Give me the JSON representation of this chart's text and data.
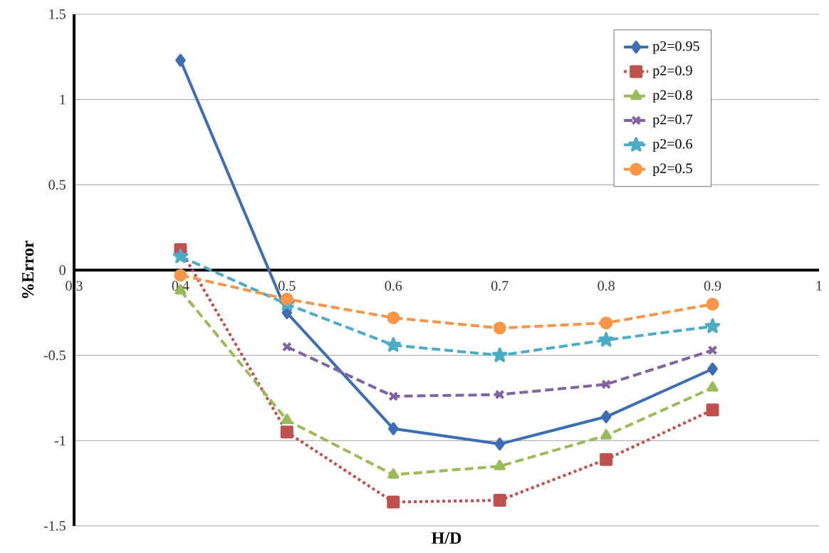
{
  "chart_data": {
    "type": "line",
    "xlabel": "H/D",
    "ylabel": "%Error",
    "x": [
      0.4,
      0.5,
      0.6,
      0.7,
      0.8,
      0.9
    ],
    "xlim": [
      0.3,
      1
    ],
    "xticks": [
      0.3,
      0.4,
      0.5,
      0.6,
      0.7,
      0.8,
      0.9,
      1
    ],
    "ylim": [
      -1.5,
      1.5
    ],
    "yticks": [
      -1.5,
      -1,
      -0.5,
      0,
      0.5,
      1,
      1.5
    ],
    "grid": "y",
    "legend": "top right",
    "series": [
      {
        "name": "p2=0.95",
        "color": "#3d6eb4",
        "marker": "diamond",
        "line_style": "solid",
        "values": [
          1.23,
          -0.25,
          -0.93,
          -1.02,
          -0.86,
          -0.58
        ]
      },
      {
        "name": "p2=0.9",
        "color": "#c0504d",
        "marker": "square",
        "line_style": "dotted",
        "values": [
          0.12,
          -0.95,
          -1.36,
          -1.35,
          -1.11,
          -0.82
        ]
      },
      {
        "name": "p2=0.8",
        "color": "#9bbb59",
        "marker": "triangle",
        "line_style": "dashed",
        "values": [
          -0.12,
          -0.88,
          -1.2,
          -1.15,
          -0.97,
          -0.69
        ]
      },
      {
        "name": "p2=0.7",
        "color": "#7f64a2",
        "marker": "cross",
        "line_style": "dashed",
        "values": [
          null,
          -0.45,
          -0.74,
          -0.73,
          -0.67,
          -0.47
        ]
      },
      {
        "name": "p2=0.6",
        "color": "#4bacc6",
        "marker": "star",
        "line_style": "dashed",
        "values": [
          0.08,
          -0.2,
          -0.44,
          -0.5,
          -0.41,
          -0.33
        ]
      },
      {
        "name": "p2=0.5",
        "color": "#f79646",
        "marker": "circle",
        "line_style": "dashed",
        "values": [
          -0.03,
          -0.17,
          -0.28,
          -0.34,
          -0.31,
          -0.2
        ]
      }
    ]
  }
}
